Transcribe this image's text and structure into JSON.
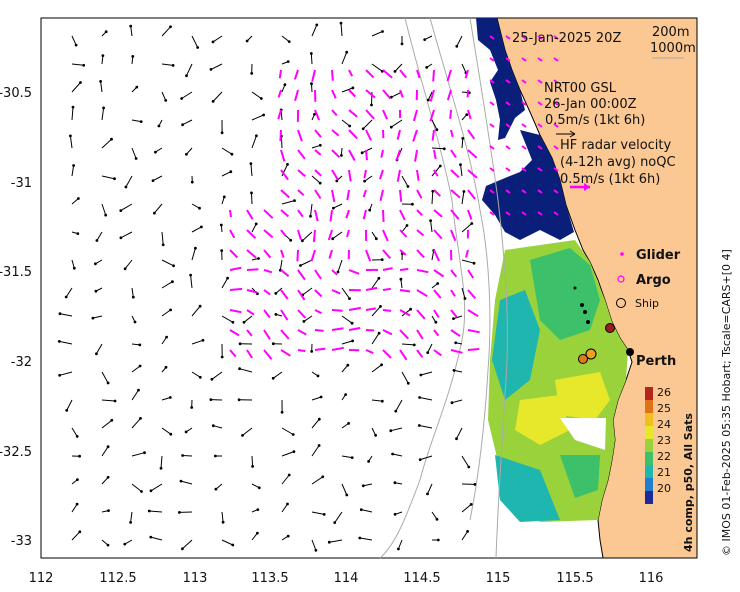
{
  "map": {
    "date_label": "25-Jan-2025 20Z",
    "contour_label_1": "200m",
    "contour_label_2": "1000m",
    "model_lines": [
      "NRT00 GSL",
      "26-Jan 00:00Z",
      "0.5m/s (1kt 6h)"
    ],
    "radar_lines": [
      "HF radar velocity",
      "(4-12h avg) noQC",
      "0.5m/s (1kt 6h)"
    ],
    "legend": {
      "glider": "Glider",
      "argo": "Argo",
      "ship": "Ship"
    },
    "city": "Perth",
    "x_ticks": [
      "112",
      "112.5",
      "113",
      "113.5",
      "114",
      "114.5",
      "115",
      "115.5",
      "116"
    ],
    "y_ticks": [
      "-30.5",
      "-31",
      "-31.5",
      "-32",
      "-32.5",
      "-33"
    ],
    "colorbar": {
      "ticks": [
        "26",
        "25",
        "24",
        "23",
        "22",
        "21",
        "20"
      ],
      "label": "4h comp, p50, All Sats",
      "colors": [
        "#b3261e",
        "#e0701a",
        "#f0c020",
        "#e8e82a",
        "#9ad23c",
        "#3cc06a",
        "#1fb6b0",
        "#1e7fd0",
        "#1b2a9a"
      ]
    },
    "credit": "© IMOS 01-Feb-2025 05:35 Hobart; Tscale=CARS+[0 4]",
    "colors": {
      "land": "#fbc792",
      "cloud": "#0a1f7a",
      "radar": "#ff00ff",
      "model": "#000000"
    }
  }
}
